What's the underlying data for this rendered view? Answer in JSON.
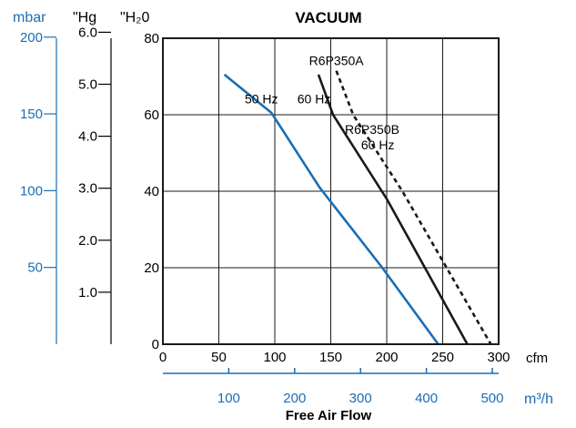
{
  "chart_data": {
    "type": "line",
    "title": "VACUUM",
    "xlabel": "Free Air Flow",
    "x_unit": "cfm",
    "x2_unit": "m³/h",
    "y_unit": "\"H₂0",
    "x_ticks": [
      0,
      50,
      100,
      150,
      200,
      250,
      300
    ],
    "x2_ticks": [
      100,
      200,
      300,
      400,
      500
    ],
    "y_ticks": [
      0,
      20,
      40,
      60,
      80
    ],
    "xlim": [
      0,
      300
    ],
    "ylim": [
      0,
      80
    ],
    "grid": true,
    "left_axes": [
      {
        "unit": "mbar",
        "ticks": [
          50,
          100,
          150,
          200
        ],
        "color": "#1a6db5"
      },
      {
        "unit": "\"Hg",
        "ticks": [
          "1.0",
          "2.0",
          "3.0",
          "4.0",
          "5.0",
          "6.0"
        ],
        "color": "#000000"
      }
    ],
    "series": [
      {
        "name": "R6P350A 50 Hz",
        "color": "#1a6db5",
        "dash": "solid",
        "points": [
          [
            55,
            70.5
          ],
          [
            97,
            60.5
          ],
          [
            140,
            41
          ],
          [
            196,
            20
          ],
          [
            246,
            0
          ]
        ]
      },
      {
        "name": "R6P350A 60 Hz",
        "color": "#1a1a1a",
        "dash": "solid",
        "points": [
          [
            139,
            70.5
          ],
          [
            152,
            60
          ],
          [
            200,
            38
          ],
          [
            272,
            0
          ]
        ]
      },
      {
        "name": "R6P350B 60 Hz",
        "color": "#1a1a1a",
        "dash": "dashed",
        "points": [
          [
            155,
            71.5
          ],
          [
            170,
            60
          ],
          [
            214,
            40
          ],
          [
            293,
            0
          ]
        ]
      }
    ],
    "annotations": [
      {
        "text": "R6P350A",
        "x": 155,
        "y": 73
      },
      {
        "text": "50 Hz",
        "x": 88,
        "y": 63
      },
      {
        "text": "60 Hz",
        "x": 135,
        "y": 63
      },
      {
        "text": "R6P350B",
        "x": 187,
        "y": 55
      },
      {
        "text": "60 Hz",
        "x": 192,
        "y": 51
      }
    ]
  }
}
